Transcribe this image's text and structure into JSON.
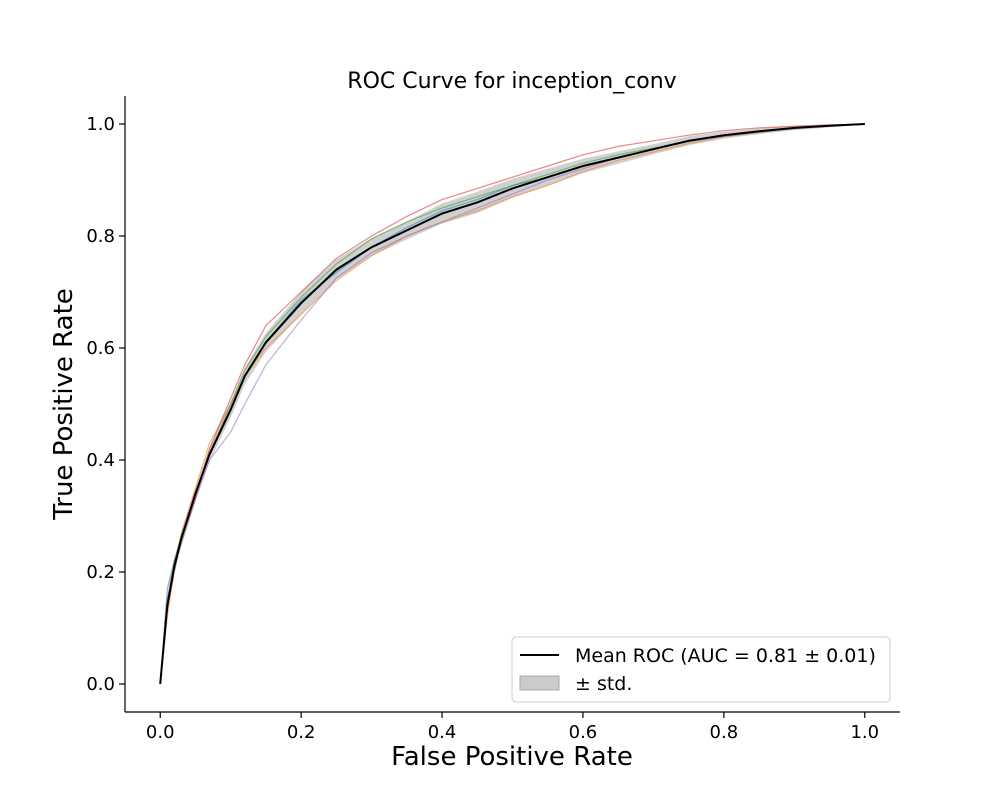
{
  "chart_data": {
    "type": "line",
    "title": "ROC Curve for inception_conv",
    "xlabel": "False Positive Rate",
    "ylabel": "True Positive Rate",
    "xlim": [
      -0.05,
      1.05
    ],
    "ylim": [
      -0.05,
      1.05
    ],
    "xticks": [
      "0.0",
      "0.2",
      "0.4",
      "0.6",
      "0.8",
      "1.0"
    ],
    "yticks": [
      "0.0",
      "0.2",
      "0.4",
      "0.6",
      "0.8",
      "1.0"
    ],
    "grid": false,
    "legend_position": "bottom-right",
    "mean_curve": {
      "label": "Mean ROC (AUC = 0.81 ± 0.01)",
      "color": "#000000",
      "x": [
        0,
        0.01,
        0.02,
        0.03,
        0.05,
        0.07,
        0.1,
        0.12,
        0.15,
        0.2,
        0.25,
        0.3,
        0.35,
        0.4,
        0.45,
        0.5,
        0.55,
        0.6,
        0.65,
        0.7,
        0.75,
        0.8,
        0.85,
        0.9,
        0.95,
        1.0
      ],
      "y": [
        0,
        0.14,
        0.21,
        0.26,
        0.34,
        0.41,
        0.49,
        0.55,
        0.61,
        0.68,
        0.74,
        0.78,
        0.81,
        0.84,
        0.86,
        0.885,
        0.905,
        0.925,
        0.94,
        0.955,
        0.97,
        0.98,
        0.987,
        0.993,
        0.997,
        1.0
      ]
    },
    "std_band": {
      "label": "± std.",
      "color": "#a9a9a9",
      "half_width": [
        0,
        0.012,
        0.012,
        0.012,
        0.012,
        0.012,
        0.014,
        0.015,
        0.017,
        0.02,
        0.018,
        0.016,
        0.016,
        0.018,
        0.019,
        0.017,
        0.015,
        0.013,
        0.011,
        0.009,
        0.008,
        0.006,
        0.005,
        0.004,
        0.003,
        0
      ]
    },
    "fold_curves": [
      {
        "color": "#1f77b4",
        "y": [
          0,
          0.17,
          0.22,
          0.26,
          0.34,
          0.41,
          0.49,
          0.55,
          0.61,
          0.685,
          0.735,
          0.78,
          0.815,
          0.845,
          0.865,
          0.89,
          0.905,
          0.925,
          0.94,
          0.955,
          0.97,
          0.978,
          0.985,
          0.992,
          0.996,
          1.0
        ]
      },
      {
        "color": "#ff7f0e",
        "y": [
          0,
          0.12,
          0.21,
          0.27,
          0.35,
          0.43,
          0.5,
          0.55,
          0.6,
          0.66,
          0.72,
          0.765,
          0.8,
          0.825,
          0.845,
          0.87,
          0.89,
          0.915,
          0.935,
          0.95,
          0.965,
          0.977,
          0.985,
          0.993,
          0.997,
          1.0
        ]
      },
      {
        "color": "#2ca02c",
        "y": [
          0,
          0.15,
          0.22,
          0.265,
          0.34,
          0.41,
          0.5,
          0.56,
          0.62,
          0.69,
          0.75,
          0.795,
          0.825,
          0.85,
          0.87,
          0.89,
          0.91,
          0.93,
          0.945,
          0.957,
          0.97,
          0.98,
          0.987,
          0.993,
          0.997,
          1.0
        ]
      },
      {
        "color": "#d62728",
        "y": [
          0,
          0.13,
          0.2,
          0.26,
          0.33,
          0.42,
          0.51,
          0.57,
          0.64,
          0.7,
          0.76,
          0.8,
          0.835,
          0.865,
          0.885,
          0.905,
          0.925,
          0.945,
          0.96,
          0.97,
          0.98,
          0.988,
          0.993,
          0.996,
          0.998,
          1.0
        ]
      },
      {
        "color": "#9467bd",
        "y": [
          0,
          0.15,
          0.21,
          0.25,
          0.33,
          0.4,
          0.45,
          0.5,
          0.57,
          0.65,
          0.725,
          0.77,
          0.8,
          0.825,
          0.85,
          0.875,
          0.9,
          0.92,
          0.94,
          0.955,
          0.968,
          0.978,
          0.986,
          0.992,
          0.996,
          1.0
        ]
      }
    ]
  }
}
